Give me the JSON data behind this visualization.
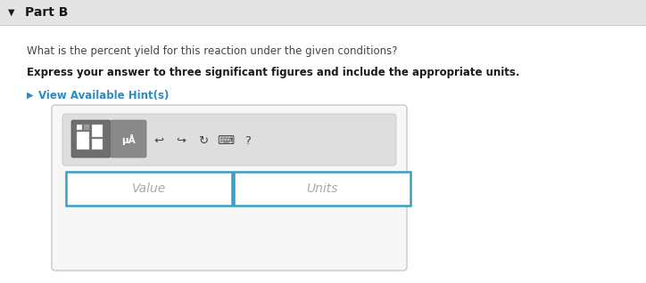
{
  "bg_color": "#f0f0f0",
  "header_bg": "#e4e4e4",
  "header_text": "Part B",
  "header_text_color": "#1a1a1a",
  "body_bg": "#ffffff",
  "question_text": "What is the percent yield for this reaction under the given conditions?",
  "question_color": "#444444",
  "bold_text": "Express your answer to three significant figures and include the appropriate units.",
  "bold_color": "#1a1a1a",
  "hint_text": "View Available Hint(s)",
  "hint_color": "#2e8bbf",
  "hint_triangle": "▶",
  "toolbar_bg": "#dedede",
  "toolbar_border": "#c8c8c8",
  "input_border": "#3a9ec2",
  "input_bg": "#ffffff",
  "value_placeholder": "Value",
  "units_placeholder": "Units",
  "placeholder_color": "#aaaaaa",
  "box_border": "#c8c8c8",
  "box_bg": "#f7f7f7",
  "icon_btn1_bg": "#6e6e6e",
  "icon_btn2_bg": "#8a8a8a",
  "arrow_down_symbol": "▼",
  "figsize": [
    7.24,
    3.18
  ],
  "dpi": 100
}
